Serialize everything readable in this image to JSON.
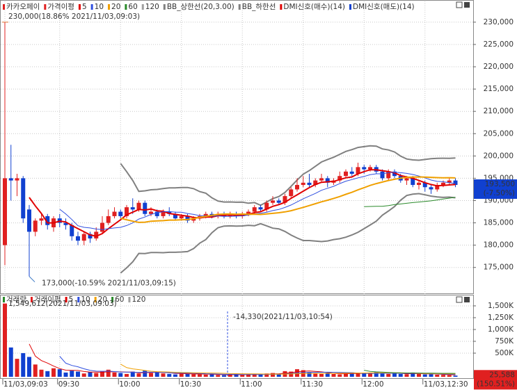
{
  "chart_data": [
    {
      "type": "candlestick",
      "title": "카카오페이",
      "ma_label": "가격이평",
      "moving_averages": [
        {
          "period": 5,
          "color": "#e00000"
        },
        {
          "period": 10,
          "color": "#3050e0"
        },
        {
          "period": 20,
          "color": "#f0a000"
        },
        {
          "period": 60,
          "color": "#2a8a2a"
        },
        {
          "period": 120,
          "color": "#a0a0a0"
        }
      ],
      "bollinger": {
        "upper": "BB_상한선(20,3.00)",
        "lower": "BB_하한선",
        "period": 20,
        "width": 3,
        "color": "#808080"
      },
      "signals": [
        {
          "name": "DMI신호(매수)(14)",
          "color": "#e00000"
        },
        {
          "name": "DMI신호(매도)(14)",
          "color": "#1040d0"
        }
      ],
      "up_color": "#e02020",
      "down_color": "#1040d0",
      "open": [
        180000,
        195000,
        194500,
        195000,
        188000,
        183000,
        185500,
        186500,
        184000,
        186000,
        185000,
        184500,
        182000,
        181000,
        182500,
        181500,
        183000,
        185000,
        186500,
        187500,
        186500,
        188500,
        188000,
        189500,
        187000,
        187500,
        186500,
        187500,
        187000,
        186000,
        186500,
        185500,
        186000,
        186500,
        187000,
        186500,
        187000,
        186500,
        187000,
        186500,
        187000,
        187500,
        188500,
        188000,
        189500,
        190000,
        189500,
        191000,
        192500,
        193500,
        194000,
        193500,
        194500,
        195000,
        194000,
        194500,
        195500,
        196500,
        196000,
        197500,
        197000,
        197500,
        196500,
        195000,
        196500,
        195500,
        194500,
        195000,
        193500,
        194000,
        193000,
        192500,
        193500,
        194000,
        194500
      ],
      "high": [
        230000,
        202500,
        196000,
        195500,
        189000,
        186000,
        187000,
        187000,
        186500,
        187000,
        186000,
        185000,
        183000,
        183000,
        183000,
        184000,
        186500,
        188000,
        188500,
        188000,
        189000,
        190500,
        190000,
        190000,
        188500,
        188000,
        188000,
        188500,
        187500,
        187000,
        187000,
        186500,
        187000,
        187500,
        187500,
        187500,
        187500,
        187500,
        187500,
        187500,
        188000,
        189000,
        189000,
        190000,
        191000,
        190500,
        191500,
        193000,
        195000,
        195500,
        196000,
        195000,
        196000,
        195500,
        195000,
        196500,
        197000,
        197500,
        198500,
        198000,
        198000,
        198000,
        197000,
        197000,
        197000,
        196000,
        195500,
        195500,
        194500,
        194500,
        193500,
        194000,
        194500,
        195000,
        195000
      ],
      "low": [
        175500,
        190000,
        191000,
        185000,
        173000,
        182000,
        184500,
        183500,
        183000,
        184000,
        183500,
        181000,
        180000,
        180000,
        180500,
        181000,
        182500,
        184500,
        186000,
        186000,
        186000,
        187000,
        187500,
        186500,
        186500,
        186000,
        186000,
        186500,
        185500,
        185500,
        185000,
        185000,
        185500,
        186000,
        186000,
        186000,
        186000,
        186000,
        186000,
        186000,
        186500,
        187000,
        187500,
        187500,
        189000,
        189000,
        189000,
        190500,
        192000,
        193000,
        193000,
        193000,
        194000,
        193000,
        193500,
        194000,
        195000,
        195500,
        195500,
        196000,
        196500,
        196000,
        194500,
        194500,
        195000,
        194000,
        193500,
        193000,
        192500,
        192000,
        191500,
        192000,
        193000,
        193500,
        193000
      ],
      "close": [
        195000,
        194500,
        195000,
        186000,
        183000,
        185500,
        186000,
        184500,
        186000,
        185000,
        184500,
        182000,
        181000,
        182500,
        181500,
        183000,
        185000,
        186500,
        187500,
        186500,
        188500,
        188000,
        189500,
        187000,
        187500,
        186500,
        187500,
        187000,
        186000,
        186500,
        185500,
        186000,
        186500,
        187000,
        186500,
        187000,
        186500,
        187000,
        186500,
        187000,
        187500,
        188500,
        188000,
        189500,
        190000,
        189500,
        191000,
        192500,
        193500,
        194000,
        193500,
        194500,
        195000,
        194000,
        194500,
        195500,
        196500,
        196000,
        197500,
        197000,
        197500,
        196500,
        195000,
        196500,
        195500,
        194500,
        195000,
        193500,
        194000,
        193000,
        192500,
        193500,
        194000,
        194500,
        193500
      ],
      "ylim": [
        169500,
        233100
      ],
      "yticks": [
        {
          "value": 230000,
          "label": "230,000"
        },
        {
          "value": 225000,
          "label": "225,000"
        },
        {
          "value": 220000,
          "label": "220,000"
        },
        {
          "value": 215000,
          "label": "215,000"
        },
        {
          "value": 210000,
          "label": "210,000"
        },
        {
          "value": 205000,
          "label": "205,000"
        },
        {
          "value": 200000,
          "label": "200,000"
        },
        {
          "value": 195000,
          "label": "195,000"
        },
        {
          "value": 190000,
          "label": "190,000"
        },
        {
          "value": 185000,
          "label": "185,000"
        },
        {
          "value": 180000,
          "label": "180,000"
        },
        {
          "value": 175000,
          "label": "175,000"
        }
      ],
      "grid": true,
      "annotations": [
        "230,000(18.86% 2021/11/03,09:03)",
        "173,000(-10.59% 2021/11/03,09:15)"
      ],
      "badge": [
        "193,500",
        "(-7.50%)"
      ]
    },
    {
      "type": "bar",
      "title": "거래량",
      "ma_label": "거래이평",
      "moving_averages": [
        {
          "period": 5,
          "color": "#e00000"
        },
        {
          "period": 10,
          "color": "#3050e0"
        },
        {
          "period": 20,
          "color": "#f0a000"
        },
        {
          "period": 60,
          "color": "#2a8a2a"
        },
        {
          "period": 120,
          "color": "#a0a0a0"
        }
      ],
      "categories": [
        "11/03,09:03",
        null,
        null,
        null,
        null,
        null,
        null,
        null,
        null,
        "09:30",
        null,
        null,
        null,
        null,
        null,
        null,
        null,
        null,
        null,
        "10:00",
        null,
        null,
        null,
        null,
        null,
        null,
        null,
        null,
        null,
        "10:30",
        null,
        null,
        null,
        null,
        null,
        null,
        null,
        null,
        null,
        "11:00",
        null,
        null,
        null,
        null,
        null,
        null,
        null,
        null,
        null,
        "11:30",
        null,
        null,
        null,
        null,
        null,
        null,
        null,
        null,
        null,
        "12:00",
        null,
        null,
        null,
        null,
        null,
        null,
        null,
        null,
        null,
        "11/03,12:30",
        null,
        null,
        null,
        null,
        null
      ],
      "values": [
        1549612,
        620000,
        380000,
        500000,
        420000,
        260000,
        150000,
        120000,
        180000,
        160000,
        90000,
        130000,
        110000,
        70000,
        100000,
        80000,
        120000,
        150000,
        90000,
        80000,
        60000,
        110000,
        70000,
        130000,
        80000,
        90000,
        70000,
        60000,
        50000,
        80000,
        60000,
        55000,
        50000,
        45000,
        60000,
        40000,
        35000,
        50000,
        45000,
        40000,
        55000,
        60000,
        50000,
        70000,
        80000,
        60000,
        120000,
        110000,
        160000,
        140000,
        90000,
        70000,
        60000,
        80000,
        60000,
        50000,
        70000,
        90000,
        80000,
        75000,
        70000,
        100000,
        80000,
        60000,
        70000,
        60000,
        55000,
        90000,
        60000,
        50000,
        55000,
        45000,
        40000,
        35000,
        25588
      ],
      "ylim": [
        0,
        1617000
      ],
      "yticks": [
        {
          "value": 500000,
          "label": "500K"
        },
        {
          "value": 750000,
          "label": "750K"
        },
        {
          "value": 1000000,
          "label": "1,000K"
        },
        {
          "value": 1250000,
          "label": "1,250K"
        },
        {
          "value": 1500000,
          "label": "1,500K"
        }
      ],
      "grid": true,
      "annotations": [
        "1,549,612(2021/11/03,09:03)",
        "-14,330(2021/11/03,10:54)"
      ],
      "badge": [
        "25,588",
        "(150.51%)"
      ]
    }
  ]
}
